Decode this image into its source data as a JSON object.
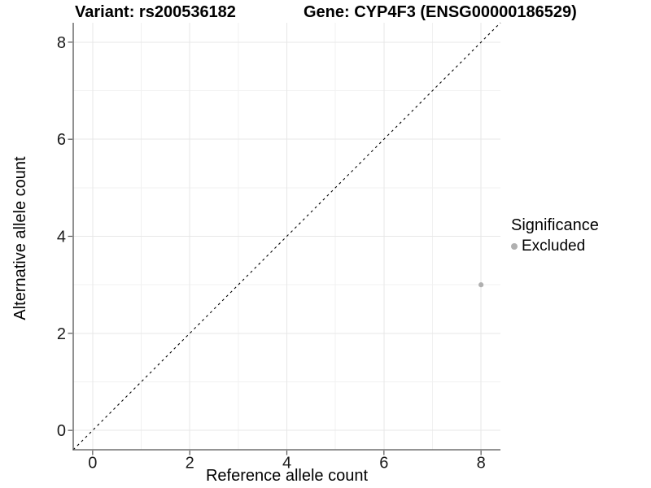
{
  "titles": {
    "variant": "Variant: rs200536182",
    "gene": "Gene: CYP4F3 (ENSG00000186529)"
  },
  "legend": {
    "title": "Significance",
    "items": [
      {
        "label": "Excluded",
        "color": "#b0b0b0"
      }
    ]
  },
  "colors": {
    "background": "#ffffff",
    "grid_major": "#e7e7e7",
    "grid_minor": "#f1f1f1",
    "axis_line": "#555555",
    "tick_text": "#1a1a1a",
    "reference_line": "#000000",
    "point": "#b0b0b0"
  },
  "chart_data": {
    "type": "scatter",
    "title": "Variant: rs200536182 | Gene: CYP4F3 (ENSG00000186529)",
    "xlabel": "Reference allele count",
    "ylabel": "Alternative allele count",
    "xlim": [
      -0.4,
      8.4
    ],
    "ylim": [
      -0.4,
      8.4
    ],
    "x_ticks": [
      0,
      2,
      4,
      6,
      8
    ],
    "y_ticks": [
      0,
      2,
      4,
      6,
      8
    ],
    "x_minor_ticks": [
      1,
      3,
      5,
      7
    ],
    "y_minor_ticks": [
      1,
      3,
      5,
      7
    ],
    "grid": true,
    "legend_position": "right",
    "series": [
      {
        "name": "Excluded",
        "color": "#b0b0b0",
        "points": [
          {
            "x": 8,
            "y": 3
          }
        ]
      }
    ],
    "reference_line": {
      "type": "identity",
      "from": [
        -0.4,
        -0.4
      ],
      "to": [
        8.4,
        8.4
      ],
      "style": "dashed",
      "color": "#000000"
    }
  }
}
